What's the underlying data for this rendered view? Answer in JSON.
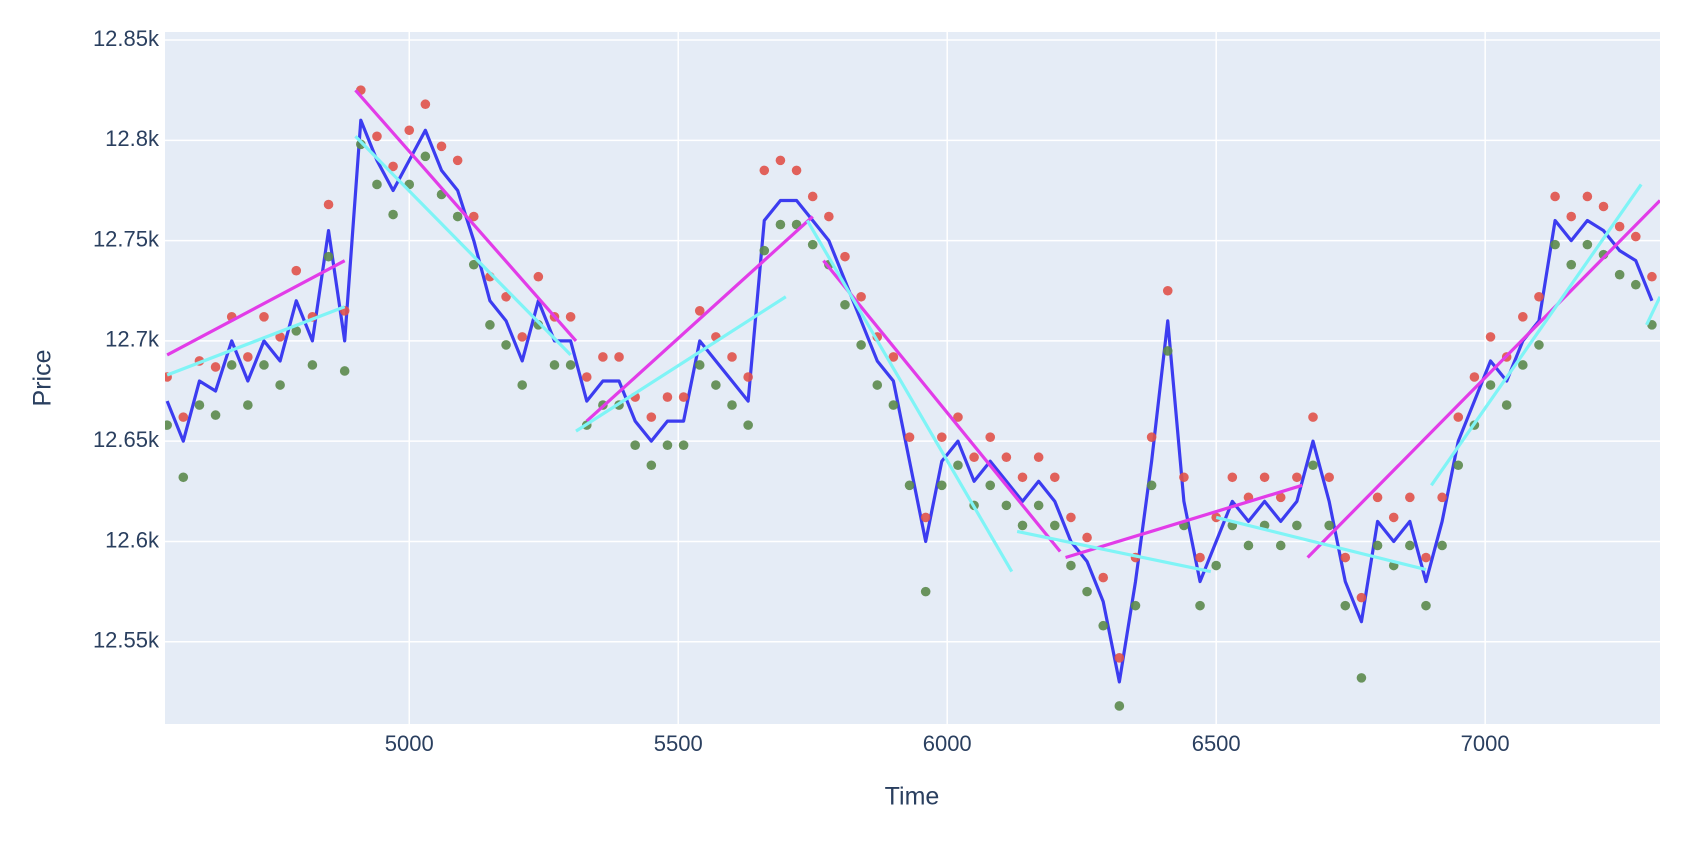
{
  "chart_data": {
    "type": "line",
    "xlabel": "Time",
    "ylabel": "Price",
    "xlim": [
      4546,
      7325
    ],
    "ylim": [
      12509,
      12854
    ],
    "xticks": [
      5000,
      5500,
      6000,
      6500,
      7000
    ],
    "yticks": [
      {
        "value": 12550,
        "label": "12.55k"
      },
      {
        "value": 12600,
        "label": "12.6k"
      },
      {
        "value": 12650,
        "label": "12.65k"
      },
      {
        "value": 12700,
        "label": "12.7k"
      },
      {
        "value": 12750,
        "label": "12.75k"
      },
      {
        "value": 12800,
        "label": "12.8k"
      },
      {
        "value": 12850,
        "label": "12.85k"
      }
    ],
    "grid": true,
    "x": [
      4550,
      4580,
      4610,
      4640,
      4670,
      4700,
      4730,
      4760,
      4790,
      4820,
      4850,
      4880,
      4910,
      4940,
      4970,
      5000,
      5030,
      5060,
      5090,
      5120,
      5150,
      5180,
      5210,
      5240,
      5270,
      5300,
      5330,
      5360,
      5390,
      5420,
      5450,
      5480,
      5510,
      5540,
      5570,
      5600,
      5630,
      5660,
      5690,
      5720,
      5750,
      5780,
      5810,
      5840,
      5870,
      5900,
      5930,
      5960,
      5990,
      6020,
      6050,
      6080,
      6110,
      6140,
      6170,
      6200,
      6230,
      6260,
      6290,
      6320,
      6350,
      6380,
      6410,
      6440,
      6470,
      6500,
      6530,
      6560,
      6590,
      6620,
      6650,
      6680,
      6710,
      6740,
      6770,
      6800,
      6830,
      6860,
      6890,
      6920,
      6950,
      6980,
      7010,
      7040,
      7070,
      7100,
      7130,
      7160,
      7190,
      7220,
      7250,
      7280,
      7310
    ],
    "series": [
      {
        "mode": "line",
        "color": "#3c3cf0",
        "values": [
          12670,
          12650,
          12680,
          12675,
          12700,
          12680,
          12700,
          12690,
          12720,
          12700,
          12755,
          12700,
          12810,
          12790,
          12775,
          12790,
          12805,
          12785,
          12775,
          12750,
          12720,
          12710,
          12690,
          12720,
          12700,
          12700,
          12670,
          12680,
          12680,
          12660,
          12650,
          12660,
          12660,
          12700,
          12690,
          12680,
          12670,
          12760,
          12770,
          12770,
          12760,
          12750,
          12730,
          12710,
          12690,
          12680,
          12640,
          12600,
          12640,
          12650,
          12630,
          12640,
          12630,
          12620,
          12630,
          12620,
          12600,
          12590,
          12570,
          12530,
          12580,
          12640,
          12710,
          12620,
          12580,
          12600,
          12620,
          12610,
          12620,
          12610,
          12620,
          12650,
          12620,
          12580,
          12560,
          12610,
          12600,
          12610,
          12580,
          12610,
          12650,
          12670,
          12690,
          12680,
          12700,
          12710,
          12760,
          12750,
          12760,
          12755,
          12745,
          12740,
          12720
        ]
      },
      {
        "mode": "markers",
        "color": "#e0524a",
        "values": [
          12682,
          12662,
          12690,
          12687,
          12712,
          12692,
          12712,
          12702,
          12735,
          12712,
          12768,
          12715,
          12825,
          12802,
          12787,
          12805,
          12818,
          12797,
          12790,
          12762,
          12732,
          12722,
          12702,
          12732,
          12712,
          12712,
          12682,
          12692,
          12692,
          12672,
          12662,
          12672,
          12672,
          12715,
          12702,
          12692,
          12682,
          12785,
          12790,
          12785,
          12772,
          12762,
          12742,
          12722,
          12702,
          12692,
          12652,
          12612,
          12652,
          12662,
          12642,
          12652,
          12642,
          12632,
          12642,
          12632,
          12612,
          12602,
          12582,
          12542,
          12592,
          12652,
          12725,
          12632,
          12592,
          12612,
          12632,
          12622,
          12632,
          12622,
          12632,
          12662,
          12632,
          12592,
          12572,
          12622,
          12612,
          12622,
          12592,
          12622,
          12662,
          12682,
          12702,
          12692,
          12712,
          12722,
          12772,
          12762,
          12772,
          12767,
          12757,
          12752,
          12732
        ]
      },
      {
        "mode": "markers",
        "color": "#5b8a4c",
        "values": [
          12658,
          12632,
          12668,
          12663,
          12688,
          12668,
          12688,
          12678,
          12705,
          12688,
          12742,
          12685,
          12798,
          12778,
          12763,
          12778,
          12792,
          12773,
          12762,
          12738,
          12708,
          12698,
          12678,
          12708,
          12688,
          12688,
          12658,
          12668,
          12668,
          12648,
          12638,
          12648,
          12648,
          12688,
          12678,
          12668,
          12658,
          12745,
          12758,
          12758,
          12748,
          12738,
          12718,
          12698,
          12678,
          12668,
          12628,
          12575,
          12628,
          12638,
          12618,
          12628,
          12618,
          12608,
          12618,
          12608,
          12588,
          12575,
          12558,
          12518,
          12568,
          12628,
          12695,
          12608,
          12568,
          12588,
          12608,
          12598,
          12608,
          12598,
          12608,
          12638,
          12608,
          12568,
          12532,
          12598,
          12588,
          12598,
          12568,
          12598,
          12638,
          12658,
          12678,
          12668,
          12688,
          12698,
          12748,
          12738,
          12748,
          12743,
          12733,
          12728,
          12708
        ]
      },
      {
        "mode": "line",
        "color": "#e23ce8",
        "x": [
          4550,
          4880,
          null,
          4900,
          5310,
          null,
          5330,
          5750,
          null,
          5770,
          6210,
          null,
          6220,
          6660,
          null,
          6670,
          7325
        ],
        "values": [
          12693,
          12740,
          null,
          12825,
          12700,
          null,
          12660,
          12762,
          null,
          12740,
          12595,
          null,
          12592,
          12628,
          null,
          12592,
          12770
        ]
      },
      {
        "mode": "line",
        "color": "#7ff4f6",
        "x": [
          4550,
          4880,
          null,
          4900,
          5300,
          null,
          5310,
          5700,
          null,
          5740,
          6120,
          null,
          6130,
          6490,
          null,
          6500,
          6890,
          null,
          6900,
          7290,
          null,
          7300,
          7325
        ],
        "values": [
          12683,
          12717,
          null,
          12802,
          12693,
          null,
          12655,
          12722,
          null,
          12760,
          12585,
          null,
          12605,
          12585,
          null,
          12612,
          12586,
          null,
          12628,
          12778,
          null,
          12708,
          12722
        ]
      }
    ]
  }
}
